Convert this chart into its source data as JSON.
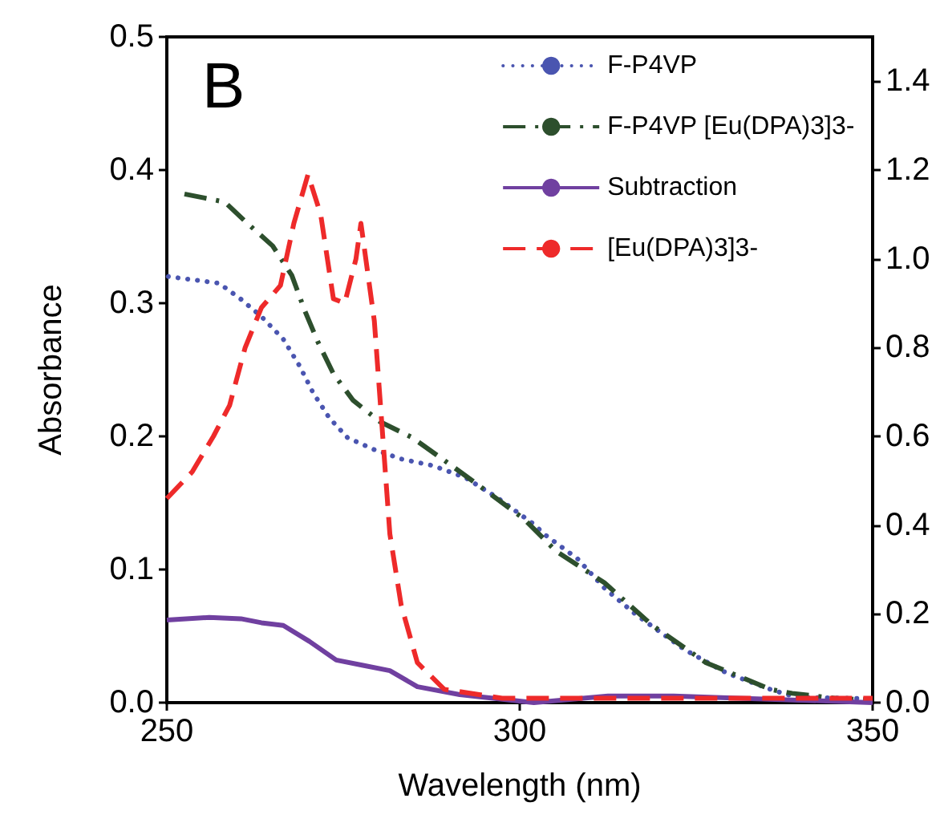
{
  "chart_data": {
    "type": "line",
    "xlabel": "Wavelength (nm)",
    "ylabel": "Absorbance",
    "annotations": [
      "B"
    ],
    "xlim": [
      250,
      350
    ],
    "xticks": [
      250,
      300,
      350
    ],
    "ylim": [
      0,
      0.5
    ],
    "yticks": [
      {
        "value": 0,
        "label": "0.0"
      },
      {
        "value": 0.1,
        "label": "0.1"
      },
      {
        "value": 0.2,
        "label": "0.2"
      },
      {
        "value": 0.3,
        "label": "0.3"
      },
      {
        "value": 0.4,
        "label": "0.4"
      },
      {
        "value": 0.5,
        "label": "0.5"
      }
    ],
    "y2lim": [
      0,
      1.5
    ],
    "y2ticks": [
      {
        "value": 0,
        "label": "0.0"
      },
      {
        "value": 0.2,
        "label": "0.2"
      },
      {
        "value": 0.4,
        "label": "0.4"
      },
      {
        "value": 0.6,
        "label": "0.6"
      },
      {
        "value": 0.8,
        "label": "0.8"
      },
      {
        "value": 1.0,
        "label": "1.0"
      },
      {
        "value": 1.2,
        "label": "1.2"
      },
      {
        "value": 1.4,
        "label": "1.4"
      }
    ],
    "legend": "top right",
    "grid": false,
    "marker": "none",
    "series": [
      {
        "name": "F-P4VP",
        "color": "#4a55b0",
        "line_style": "dotted",
        "x": [
          250.2,
          257.4,
          260.5,
          263.4,
          266.5,
          268.8,
          270.7,
          273,
          275.6,
          279.4,
          283.2,
          287.7,
          292.3,
          296.8,
          302,
          303.6,
          308.2,
          312,
          316.5,
          323.3,
          329.4,
          335.5,
          339.2,
          350
        ],
        "values": [
          0.32,
          0.315,
          0.303,
          0.29,
          0.273,
          0.253,
          0.233,
          0.214,
          0.199,
          0.19,
          0.183,
          0.178,
          0.169,
          0.154,
          0.134,
          0.126,
          0.108,
          0.086,
          0.066,
          0.04,
          0.022,
          0.01,
          0.004,
          0.003
        ]
      },
      {
        "name": "F-P4VP [Eu(DPA)3]3-",
        "color": "#2d4f2d",
        "line_style": "dashdot",
        "x": [
          252.5,
          258.2,
          261.2,
          265,
          267.7,
          269.5,
          271.4,
          273.6,
          276.4,
          280.2,
          284.8,
          289.3,
          294.5,
          300.6,
          305.1,
          312,
          318.8,
          326.4,
          335.5,
          338.6,
          345,
          350
        ],
        "values": [
          0.382,
          0.376,
          0.361,
          0.343,
          0.321,
          0.295,
          0.271,
          0.247,
          0.227,
          0.211,
          0.199,
          0.182,
          0.162,
          0.138,
          0.114,
          0.09,
          0.058,
          0.03,
          0.01,
          0.007,
          0.003,
          0.002
        ]
      },
      {
        "name": "Subtraction",
        "color": "#7040a0",
        "line_style": "solid",
        "x": [
          250,
          256,
          260.5,
          263.4,
          266.5,
          270.2,
          274,
          277.8,
          281.6,
          285.5,
          291.5,
          302,
          312.5,
          321.8,
          350
        ],
        "values": [
          0.062,
          0.064,
          0.063,
          0.06,
          0.058,
          0.046,
          0.032,
          0.028,
          0.024,
          0.012,
          0.006,
          0.0,
          0.005,
          0.005,
          0.0
        ]
      },
      {
        "name": "[Eu(DPA)3]3-",
        "color": "#ee2a2a",
        "line_style": "dashed",
        "axis": "y2",
        "x": [
          250,
          253.6,
          256.6,
          258.9,
          261.1,
          263.4,
          266.1,
          268,
          270,
          271.8,
          273.6,
          275.2,
          276.8,
          277.5,
          279.4,
          280.5,
          281.6,
          283.2,
          285.5,
          289.3,
          297.5,
          350
        ],
        "values": [
          0.46,
          0.52,
          0.6,
          0.67,
          0.8,
          0.89,
          0.94,
          1.08,
          1.19,
          1.1,
          0.91,
          0.9,
          1.0,
          1.08,
          0.86,
          0.62,
          0.38,
          0.22,
          0.09,
          0.03,
          0.01,
          0.01
        ]
      }
    ]
  }
}
